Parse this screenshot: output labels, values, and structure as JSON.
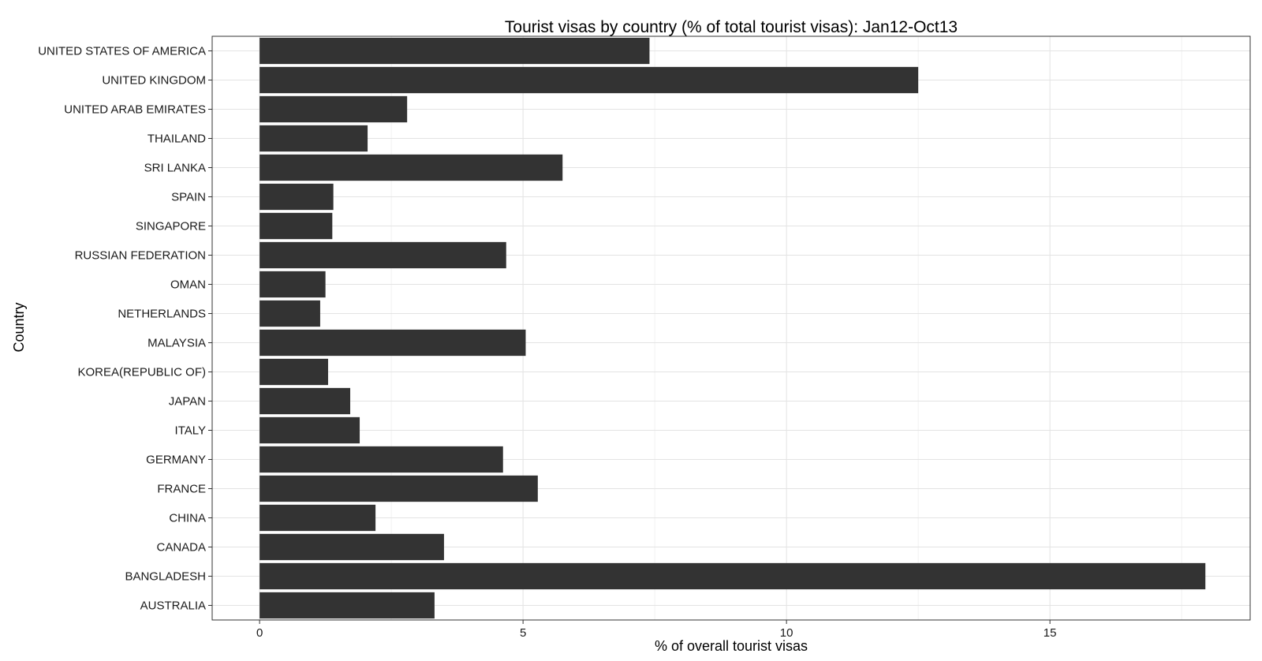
{
  "chart_data": {
    "type": "bar",
    "orientation": "horizontal",
    "title": "Tourist visas by country (% of total tourist visas): Jan12-Oct13",
    "xlabel": "% of overall tourist visas",
    "ylabel": "Country",
    "categories": [
      "UNITED STATES OF AMERICA",
      "UNITED KINGDOM",
      "UNITED ARAB EMIRATES",
      "THAILAND",
      "SRI LANKA",
      "SPAIN",
      "SINGAPORE",
      "RUSSIAN FEDERATION",
      "OMAN",
      "NETHERLANDS",
      "MALAYSIA",
      "KOREA(REPUBLIC OF)",
      "JAPAN",
      "ITALY",
      "GERMANY",
      "FRANCE",
      "CHINA",
      "CANADA",
      "BANGLADESH",
      "AUSTRALIA"
    ],
    "values": [
      7.4,
      12.5,
      2.8,
      2.05,
      5.75,
      1.4,
      1.38,
      4.68,
      1.25,
      1.15,
      5.05,
      1.3,
      1.72,
      1.9,
      4.62,
      5.28,
      2.2,
      3.5,
      17.95,
      3.32
    ],
    "xticks": [
      0,
      5,
      10,
      15
    ],
    "xtick_labels": [
      "0",
      "5",
      "10",
      "15"
    ],
    "xlim": [
      -0.9,
      18.8
    ],
    "grid": true,
    "bar_color": "#333333"
  }
}
